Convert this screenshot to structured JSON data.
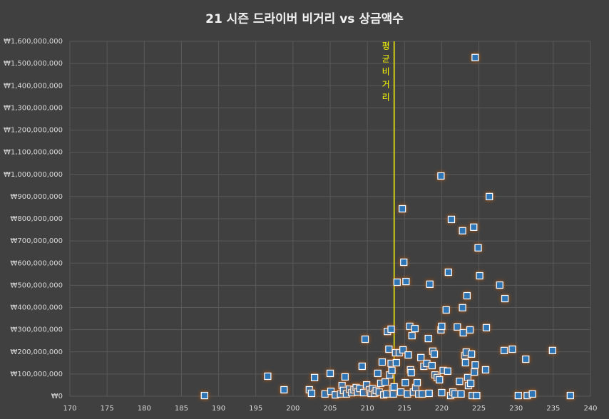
{
  "chart_data": {
    "type": "scatter",
    "title": "21 시즌 드라이버 비거리 vs 상금액수",
    "x": [
      188.1,
      196.6,
      198.8,
      202.2,
      202.5,
      202.9,
      204.3,
      205.0,
      205.1,
      205.7,
      206.4,
      206.6,
      206.8,
      207.0,
      207.2,
      207.6,
      207.9,
      208.2,
      208.5,
      208.7,
      209.0,
      209.3,
      209.5,
      209.7,
      209.9,
      210.3,
      210.5,
      210.7,
      211.0,
      211.2,
      211.4,
      211.6,
      211.8,
      212.0,
      212.2,
      212.4,
      212.6,
      212.7,
      212.9,
      213.0,
      213.2,
      213.2,
      213.3,
      213.4,
      213.5,
      213.6,
      213.8,
      213.9,
      214.0,
      214.3,
      214.5,
      214.7,
      214.8,
      214.9,
      215.1,
      215.2,
      215.4,
      215.5,
      215.7,
      215.8,
      215.9,
      216.0,
      216.2,
      216.4,
      216.5,
      216.7,
      216.9,
      217.2,
      217.4,
      217.6,
      218.0,
      218.2,
      218.3,
      218.4,
      218.7,
      218.8,
      219.0,
      219.1,
      219.4,
      219.7,
      219.9,
      219.9,
      220.0,
      220.0,
      220.2,
      220.6,
      220.8,
      220.9,
      221.2,
      221.3,
      221.5,
      221.8,
      222.1,
      222.4,
      222.6,
      222.8,
      222.8,
      222.9,
      223.1,
      223.2,
      223.3,
      223.4,
      223.5,
      223.6,
      223.8,
      223.9,
      224.0,
      224.1,
      224.3,
      224.4,
      224.5,
      224.5,
      224.7,
      224.9,
      225.1,
      225.9,
      226.0,
      226.4,
      227.8,
      228.4,
      228.5,
      229.5,
      230.3,
      231.3,
      231.5,
      232.2,
      234.9,
      237.3
    ],
    "values": [
      3000000,
      90000000,
      29000000,
      29000000,
      13000000,
      84000000,
      10000000,
      103000000,
      22000000,
      6000000,
      10000000,
      48000000,
      26000000,
      87000000,
      10000000,
      32000000,
      16000000,
      29000000,
      39000000,
      19000000,
      35000000,
      135000000,
      16000000,
      257000000,
      51000000,
      29000000,
      13000000,
      35000000,
      13000000,
      26000000,
      103000000,
      19000000,
      58000000,
      154000000,
      6000000,
      64000000,
      10000000,
      292000000,
      212000000,
      96000000,
      148000000,
      302000000,
      116000000,
      35000000,
      10000000,
      42000000,
      196000000,
      151000000,
      514000000,
      196000000,
      19000000,
      845000000,
      209000000,
      604000000,
      61000000,
      517000000,
      10000000,
      186000000,
      315000000,
      119000000,
      106000000,
      273000000,
      19000000,
      305000000,
      39000000,
      61000000,
      10000000,
      174000000,
      10000000,
      135000000,
      148000000,
      260000000,
      13000000,
      505000000,
      138000000,
      203000000,
      190000000,
      96000000,
      84000000,
      74000000,
      993000000,
      299000000,
      315000000,
      16000000,
      116000000,
      389000000,
      113000000,
      559000000,
      3000000,
      797000000,
      19000000,
      10000000,
      312000000,
      67000000,
      10000000,
      746000000,
      399000000,
      286000000,
      183000000,
      151000000,
      199000000,
      453000000,
      84000000,
      48000000,
      299000000,
      58000000,
      190000000,
      3000000,
      762000000,
      109000000,
      1527000000,
      141000000,
      3000000,
      669000000,
      543000000,
      119000000,
      309000000,
      900000000,
      501000000,
      206000000,
      440000000,
      212000000,
      3000000,
      167000000,
      3000000,
      10000000,
      206000000,
      3000000
    ],
    "color": "#2e75b6",
    "xlim": [
      170,
      240
    ],
    "xticks": [
      170,
      175,
      180,
      185,
      190,
      195,
      200,
      205,
      210,
      215,
      220,
      225,
      230,
      235,
      240
    ],
    "ylim": [
      0,
      1600000000
    ],
    "yticks": [
      {
        "value": 0,
        "label": "₩0"
      },
      {
        "value": 100000000,
        "label": "₩100,000,000"
      },
      {
        "value": 200000000,
        "label": "₩200,000,000"
      },
      {
        "value": 300000000,
        "label": "₩300,000,000"
      },
      {
        "value": 400000000,
        "label": "₩400,000,000"
      },
      {
        "value": 500000000,
        "label": "₩500,000,000"
      },
      {
        "value": 600000000,
        "label": "₩600,000,000"
      },
      {
        "value": 700000000,
        "label": "₩700,000,000"
      },
      {
        "value": 800000000,
        "label": "₩800,000,000"
      },
      {
        "value": 900000000,
        "label": "₩900,000,000"
      },
      {
        "value": 1000000000,
        "label": "₩1,000,000,000"
      },
      {
        "value": 1100000000,
        "label": "₩1,100,000,000"
      },
      {
        "value": 1200000000,
        "label": "₩1,200,000,000"
      },
      {
        "value": 1300000000,
        "label": "₩1,300,000,000"
      },
      {
        "value": 1400000000,
        "label": "₩1,400,000,000"
      },
      {
        "value": 1500000000,
        "label": "₩1,500,000,000"
      },
      {
        "value": 1600000000,
        "label": "₩1,600,000,000"
      }
    ],
    "grid": true,
    "average_line": {
      "x": 213.6,
      "label": "평균비거리",
      "color": "#ffff00"
    }
  }
}
